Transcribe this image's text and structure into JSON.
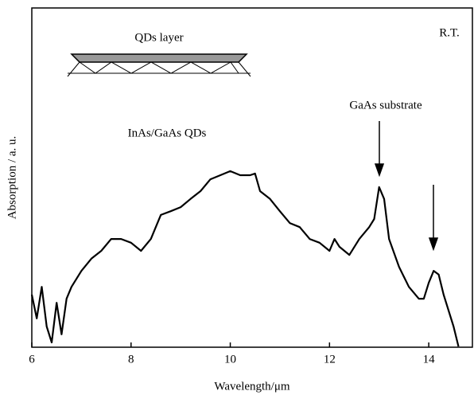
{
  "chart_data": {
    "type": "line",
    "xlabel": "Wavelength/μm",
    "ylabel": "Absorption / a. u.",
    "annotations": [
      "QDs layer",
      "InAs/GaAs QDs",
      "GaAs substrate",
      "R.T."
    ],
    "xlim": [
      6,
      14.88
    ],
    "ylim": [
      0,
      100
    ],
    "xticks": [
      6,
      8,
      10,
      12,
      14
    ],
    "color": "#000000",
    "x": [
      6.0,
      6.1,
      6.2,
      6.3,
      6.4,
      6.5,
      6.6,
      6.7,
      6.8,
      7.0,
      7.2,
      7.4,
      7.6,
      7.8,
      8.0,
      8.2,
      8.4,
      8.6,
      8.8,
      9.0,
      9.2,
      9.4,
      9.6,
      9.8,
      10.0,
      10.2,
      10.4,
      10.5,
      10.6,
      10.8,
      11.0,
      11.2,
      11.4,
      11.6,
      11.8,
      12.0,
      12.1,
      12.2,
      12.4,
      12.6,
      12.8,
      12.9,
      13.0,
      13.1,
      13.2,
      13.4,
      13.6,
      13.8,
      13.9,
      14.0,
      14.1,
      14.2,
      14.3,
      14.5,
      14.6
    ],
    "values": [
      15.5,
      8.5,
      17.8,
      6.1,
      1.4,
      13.1,
      3.8,
      14.3,
      17.8,
      22.5,
      26.1,
      28.4,
      31.9,
      31.9,
      30.8,
      28.4,
      31.9,
      39.0,
      40.1,
      41.3,
      43.7,
      46.0,
      49.5,
      50.7,
      51.9,
      50.7,
      50.7,
      51.2,
      46.0,
      43.7,
      40.1,
      36.6,
      35.4,
      31.9,
      30.8,
      28.4,
      31.9,
      29.6,
      27.2,
      31.9,
      35.4,
      37.8,
      47.2,
      43.7,
      31.9,
      23.7,
      17.8,
      14.3,
      14.3,
      19.0,
      22.5,
      21.4,
      15.5,
      6.1,
      0.2
    ]
  }
}
